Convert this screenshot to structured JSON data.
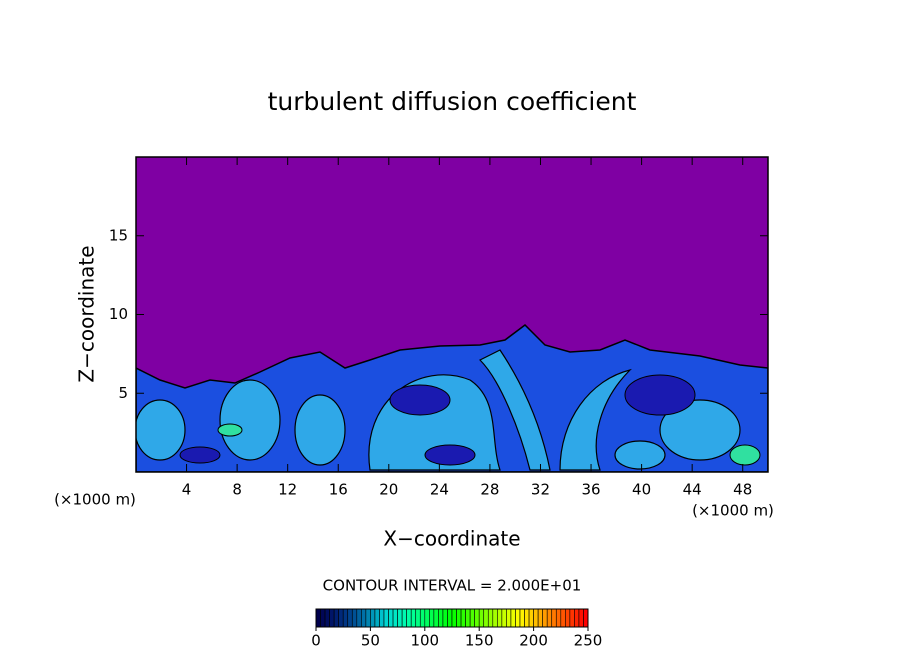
{
  "chart_data": {
    "type": "contour",
    "title": "turbulent diffusion coefficient",
    "x_label": "X−coordinate",
    "y_label": "Z−coordinate",
    "x_unit_label": "(×1000 m)",
    "y_unit_label": "(×1000 m)",
    "contour_interval_label": "CONTOUR INTERVAL = 2.000E+01",
    "xlim": [
      0,
      50
    ],
    "xticks": [
      4,
      8,
      12,
      16,
      20,
      24,
      28,
      32,
      36,
      40,
      44,
      48
    ],
    "ylim": [
      0,
      20
    ],
    "yticks": [
      5,
      10,
      15
    ],
    "background_color": "#7f00a3",
    "colorbar": {
      "lim": [
        0,
        250
      ],
      "ticks": [
        0,
        50,
        100,
        150,
        200,
        250
      ]
    }
  }
}
